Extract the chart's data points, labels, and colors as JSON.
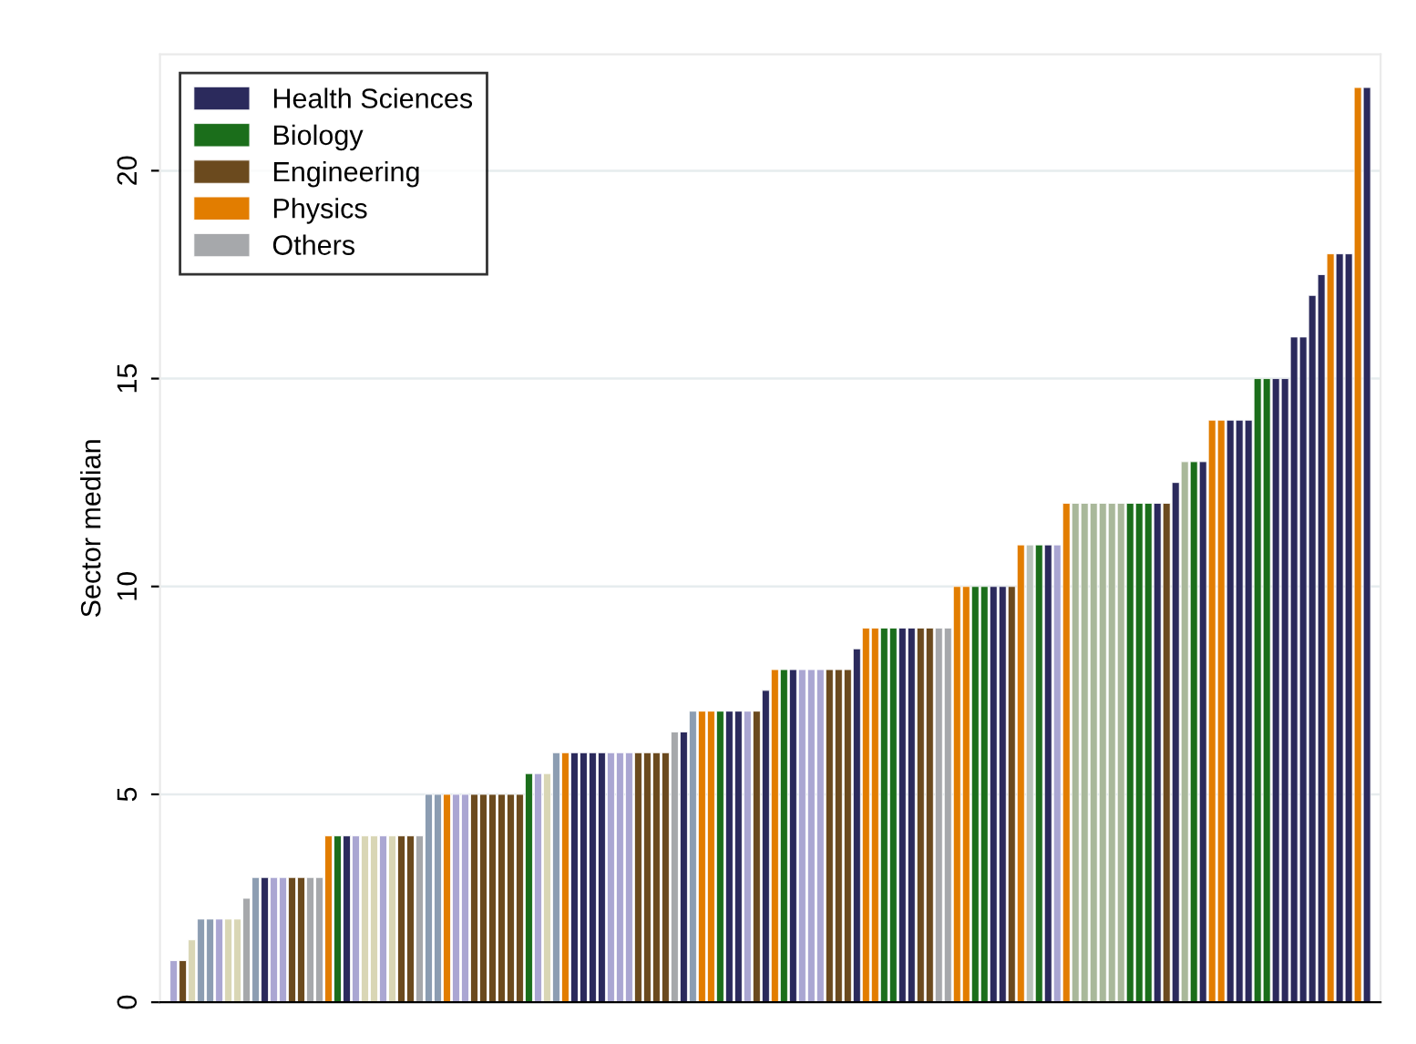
{
  "chart_data": {
    "type": "bar",
    "ylabel": "Sector median",
    "categories": [
      null,
      null,
      null,
      null,
      null,
      null,
      null,
      null,
      null,
      null,
      null,
      null,
      null,
      null,
      null,
      null,
      null,
      null,
      null,
      null,
      null,
      null,
      null,
      null,
      null,
      null,
      null,
      null,
      null,
      null,
      null,
      null,
      null,
      null,
      null,
      null,
      null,
      null,
      null,
      null,
      null,
      null,
      null,
      null,
      null,
      null,
      null,
      null,
      null,
      null,
      null,
      null,
      null,
      null,
      null,
      null,
      null,
      null,
      null,
      null,
      null,
      null,
      null,
      null,
      null,
      null,
      null,
      null,
      null,
      null,
      null,
      null,
      null,
      null,
      null,
      null,
      null,
      null,
      null,
      null,
      null,
      null,
      null,
      null,
      null,
      null,
      null,
      null,
      null,
      null,
      null,
      null,
      null,
      null,
      null,
      null,
      null,
      null,
      null,
      null,
      null,
      null,
      null,
      null,
      null,
      null,
      null,
      null,
      null,
      null,
      null,
      null,
      null,
      null,
      null,
      null,
      null,
      null,
      null,
      null,
      null,
      null,
      null,
      null,
      null,
      null,
      null,
      null,
      null,
      null,
      null,
      null
    ],
    "series": [
      {
        "name": "Health Sciences",
        "color": "#2b2a5c",
        "values": [
          null,
          null,
          null,
          null,
          null,
          null,
          null,
          null,
          null,
          null,
          3,
          null,
          null,
          null,
          null,
          null,
          null,
          null,
          null,
          4,
          null,
          null,
          null,
          null,
          null,
          null,
          null,
          null,
          null,
          null,
          null,
          null,
          null,
          null,
          null,
          null,
          null,
          null,
          null,
          null,
          null,
          null,
          null,
          null,
          6,
          6,
          6,
          6,
          null,
          null,
          null,
          null,
          null,
          null,
          null,
          null,
          6.5,
          null,
          null,
          null,
          null,
          7,
          7,
          null,
          null,
          7.5,
          null,
          null,
          8,
          null,
          null,
          null,
          null,
          null,
          null,
          8.5,
          null,
          null,
          null,
          null,
          9,
          9,
          null,
          null,
          null,
          null,
          null,
          null,
          null,
          null,
          10,
          10,
          null,
          null,
          null,
          null,
          11,
          null,
          null,
          null,
          null,
          null,
          null,
          null,
          null,
          null,
          null,
          null,
          12,
          null,
          12.5,
          null,
          null,
          13,
          null,
          null,
          14,
          14,
          14,
          null,
          null,
          15,
          15,
          16,
          16,
          17,
          17.5,
          null,
          18,
          18,
          null,
          22
        ]
      },
      {
        "name": "Biology",
        "color": "#1b6e1b",
        "values": [
          null,
          null,
          null,
          null,
          null,
          null,
          null,
          null,
          null,
          null,
          null,
          null,
          null,
          null,
          null,
          null,
          null,
          null,
          4,
          null,
          null,
          null,
          null,
          null,
          null,
          null,
          null,
          null,
          null,
          null,
          null,
          null,
          null,
          null,
          null,
          null,
          null,
          null,
          null,
          5.5,
          null,
          null,
          null,
          null,
          null,
          null,
          null,
          null,
          null,
          null,
          null,
          null,
          null,
          null,
          null,
          null,
          null,
          null,
          null,
          null,
          7,
          null,
          null,
          null,
          null,
          null,
          null,
          8,
          null,
          null,
          null,
          null,
          null,
          null,
          null,
          null,
          null,
          null,
          9,
          9,
          null,
          null,
          null,
          null,
          null,
          null,
          null,
          null,
          10,
          10,
          null,
          null,
          null,
          null,
          null,
          11,
          null,
          null,
          null,
          null,
          null,
          null,
          null,
          null,
          null,
          12,
          12,
          12,
          null,
          null,
          null,
          null,
          13,
          null,
          null,
          null,
          null,
          null,
          null,
          15,
          15,
          null,
          null,
          null,
          null,
          null,
          null,
          null,
          null,
          null,
          null,
          null
        ]
      },
      {
        "name": "Engineering",
        "color": "#6b4a1e",
        "values": [
          null,
          1,
          null,
          null,
          null,
          null,
          null,
          null,
          null,
          null,
          null,
          null,
          null,
          3,
          3,
          null,
          null,
          null,
          null,
          null,
          null,
          null,
          null,
          null,
          null,
          4,
          4,
          null,
          null,
          null,
          null,
          null,
          null,
          5,
          5,
          5,
          5,
          5,
          5,
          null,
          null,
          null,
          null,
          null,
          null,
          null,
          null,
          null,
          null,
          null,
          null,
          6,
          6,
          6,
          6,
          null,
          null,
          null,
          null,
          null,
          null,
          null,
          null,
          null,
          7,
          null,
          null,
          null,
          null,
          null,
          null,
          null,
          8,
          8,
          8,
          null,
          null,
          null,
          null,
          null,
          null,
          null,
          9,
          9,
          null,
          null,
          null,
          null,
          null,
          null,
          null,
          null,
          10,
          null,
          null,
          null,
          null,
          null,
          null,
          null,
          null,
          null,
          null,
          null,
          null,
          null,
          null,
          null,
          null,
          12,
          null,
          null,
          null,
          null,
          null,
          null,
          null,
          null,
          null,
          null,
          null,
          null,
          null,
          null,
          null,
          null,
          null,
          null,
          null,
          null,
          null,
          null
        ]
      },
      {
        "name": "Physics",
        "color": "#e27d00",
        "values": [
          null,
          null,
          null,
          null,
          null,
          null,
          null,
          null,
          null,
          null,
          null,
          null,
          null,
          null,
          null,
          null,
          null,
          4,
          null,
          null,
          null,
          null,
          null,
          null,
          null,
          null,
          null,
          null,
          null,
          null,
          5,
          null,
          null,
          null,
          null,
          null,
          null,
          null,
          null,
          null,
          null,
          null,
          null,
          6,
          null,
          null,
          null,
          null,
          null,
          null,
          null,
          null,
          null,
          null,
          null,
          null,
          null,
          null,
          7,
          7,
          null,
          null,
          null,
          null,
          null,
          null,
          8,
          null,
          null,
          null,
          null,
          null,
          null,
          null,
          null,
          null,
          9,
          9,
          null,
          null,
          null,
          null,
          null,
          null,
          null,
          null,
          10,
          10,
          null,
          null,
          null,
          null,
          null,
          11,
          null,
          null,
          null,
          null,
          12,
          null,
          null,
          null,
          null,
          null,
          null,
          null,
          null,
          null,
          null,
          null,
          null,
          null,
          null,
          null,
          14,
          14,
          null,
          null,
          null,
          null,
          null,
          null,
          null,
          null,
          null,
          null,
          null,
          18,
          null,
          null,
          22,
          null
        ]
      },
      {
        "name": "Others",
        "color": "#a6a8ab",
        "values": [
          1,
          null,
          1.5,
          2,
          2,
          2,
          2,
          2,
          2.5,
          3,
          null,
          3,
          3,
          null,
          null,
          3,
          3,
          null,
          null,
          null,
          4,
          4,
          4,
          4,
          4,
          null,
          null,
          4,
          5,
          5,
          null,
          5,
          5,
          null,
          null,
          null,
          null,
          null,
          null,
          null,
          5.5,
          5.5,
          6,
          null,
          null,
          null,
          null,
          null,
          6,
          6,
          6,
          null,
          null,
          null,
          null,
          6.5,
          null,
          7,
          null,
          null,
          null,
          null,
          null,
          7,
          null,
          null,
          null,
          null,
          null,
          8,
          8,
          8,
          null,
          null,
          null,
          null,
          null,
          null,
          null,
          null,
          null,
          null,
          null,
          null,
          9,
          9,
          null,
          null,
          null,
          null,
          null,
          null,
          null,
          null,
          11,
          null,
          null,
          11,
          null,
          12,
          12,
          12,
          12,
          12,
          12,
          null,
          null,
          null,
          null,
          null,
          null,
          13,
          null,
          null,
          null,
          null,
          null,
          null,
          null,
          null,
          null,
          null,
          null,
          null,
          null,
          null,
          null,
          null,
          null,
          null,
          null,
          null
        ],
        "colors": [
          "#aaa6d2",
          null,
          "#d9d6b5",
          "#8c9db2",
          "#8c9db2",
          "#aaa6d2",
          "#d9d6b5",
          "#d9d6b5",
          "#a6a8ab",
          "#8c9db2",
          null,
          "#aaa6d2",
          "#aaa6d2",
          null,
          null,
          "#a6a8ab",
          "#a6a8ab",
          null,
          null,
          null,
          "#aaa6d2",
          "#d9d6b5",
          "#d9d6b5",
          "#aaa6d2",
          "#d9d6b5",
          null,
          null,
          "#a6a8ab",
          "#8c9db2",
          "#8c9db2",
          null,
          "#aaa6d2",
          "#aaa6d2",
          null,
          null,
          null,
          null,
          null,
          null,
          null,
          "#aaa6d2",
          "#d9d6b5",
          "#8c9db2",
          null,
          null,
          null,
          null,
          null,
          "#aaa6d2",
          "#aaa6d2",
          "#aaa6d2",
          null,
          null,
          null,
          null,
          "#a6a8ab",
          null,
          "#8c9db2",
          null,
          null,
          null,
          null,
          null,
          "#aaa6d2",
          null,
          null,
          null,
          null,
          null,
          "#aaa6d2",
          "#aaa6d2",
          "#aaa6d2",
          null,
          null,
          null,
          null,
          null,
          null,
          null,
          null,
          null,
          null,
          null,
          null,
          "#a6a8ab",
          "#a6a8ab",
          null,
          null,
          null,
          null,
          null,
          null,
          null,
          null,
          "#b9c3bb",
          null,
          null,
          "#aaa6d2",
          null,
          "#a9b89a",
          "#a9b89a",
          "#a9b89a",
          "#a9b89a",
          "#a9b89a",
          "#a9b89a",
          null,
          null,
          null,
          null,
          null,
          null,
          "#a9b89a",
          null,
          null,
          null,
          null,
          null,
          null,
          null,
          null,
          null,
          null,
          null,
          null,
          null,
          null,
          null,
          null,
          null,
          null,
          null,
          null
        ]
      }
    ],
    "stacked": true,
    "ylim": [
      0,
      22.8
    ],
    "yticks": [
      0,
      5,
      10,
      15,
      20
    ],
    "grid": "y",
    "legend": "top left",
    "tick_labels": "y"
  }
}
